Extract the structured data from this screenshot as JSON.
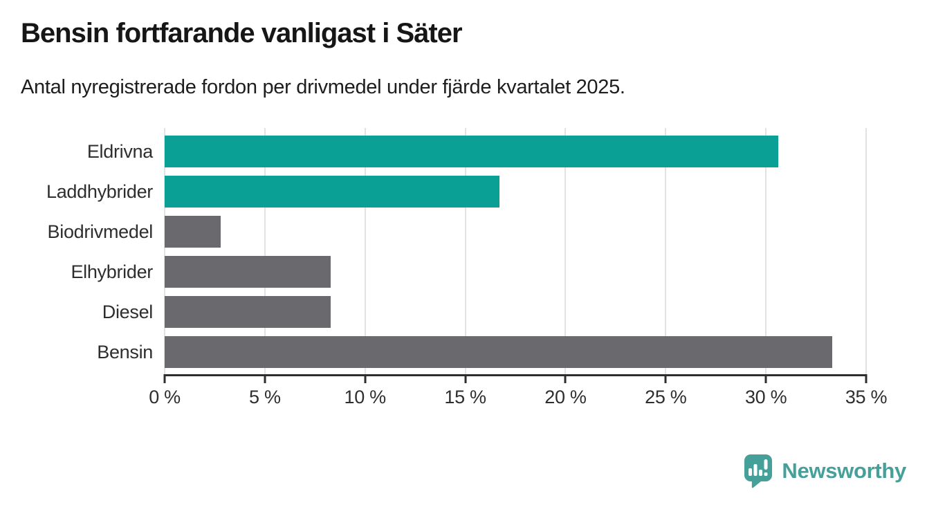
{
  "chart_data": {
    "type": "bar",
    "orientation": "horizontal",
    "title": "Bensin fortfarande vanligast i Säter",
    "subtitle": "Antal nyregistrerade fordon per drivmedel under fjärde kvartalet 2025.",
    "categories": [
      "Eldrivna",
      "Laddhybrider",
      "Biodrivmedel",
      "Elhybrider",
      "Diesel",
      "Bensin"
    ],
    "values": [
      30.6,
      16.7,
      2.8,
      8.3,
      8.3,
      33.3
    ],
    "unit": "%",
    "bar_colors": [
      "#0aa096",
      "#0aa096",
      "#6a6a6e",
      "#6a6a6e",
      "#6a6a6e",
      "#6a6a6e"
    ],
    "highlight_color": "#0aa096",
    "default_color": "#6a6a6e",
    "xlim": [
      0,
      35
    ],
    "x_ticks": [
      0,
      5,
      10,
      15,
      20,
      25,
      30,
      35
    ],
    "x_tick_labels": [
      "0 %",
      "5 %",
      "10 %",
      "15 %",
      "20 %",
      "25 %",
      "30 %",
      "35 %"
    ],
    "grid": "vertical",
    "legend": "none",
    "xlabel": "",
    "ylabel": ""
  },
  "branding": {
    "logo_text": "Newsworthy",
    "logo_color": "#45a09a",
    "logo_icon": "speech-bubble-with-bar-chart-and-exclamation"
  }
}
